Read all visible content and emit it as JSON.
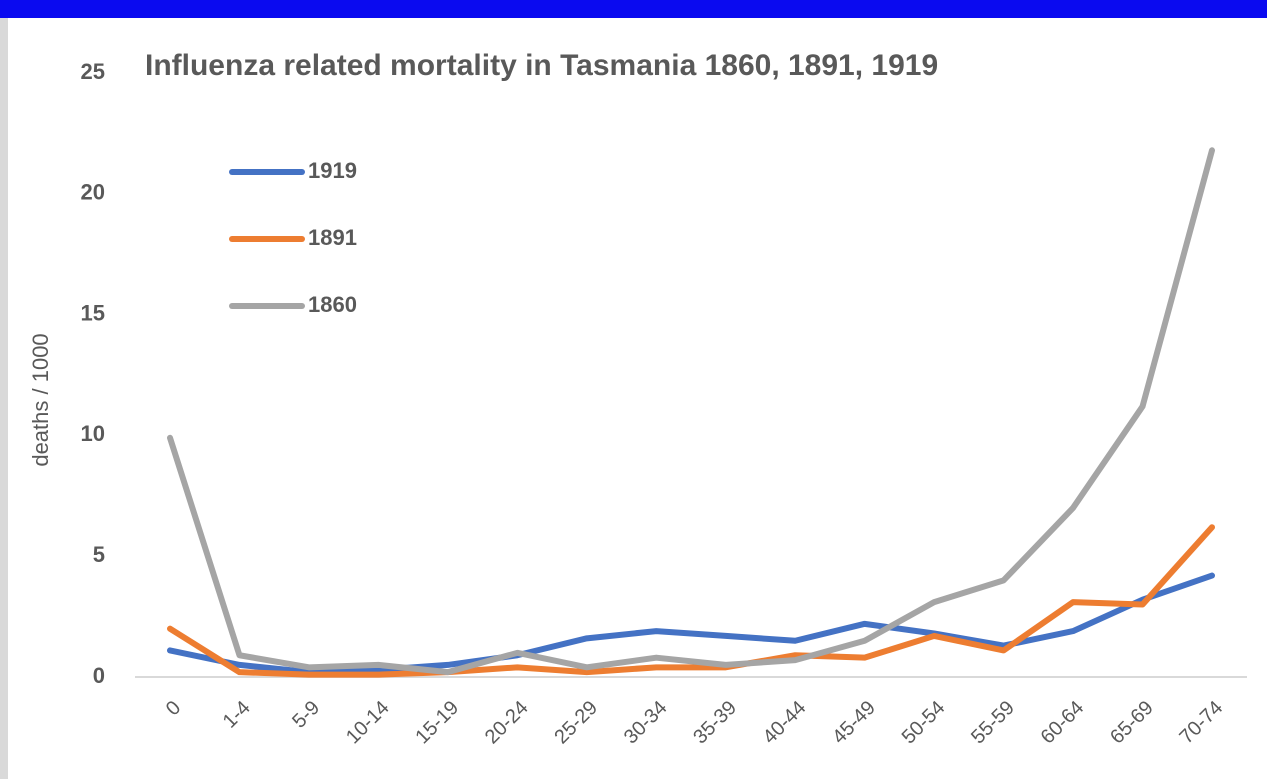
{
  "chart_data": {
    "type": "line",
    "title": "Influenza related mortality in Tasmania 1860, 1891, 1919",
    "y_label": "deaths / 1000",
    "categories": [
      "0",
      "1-4",
      "5-9",
      "10-14",
      "15-19",
      "20-24",
      "25-29",
      "30-34",
      "35-39",
      "40-44",
      "45-49",
      "50-54",
      "55-59",
      "60-64",
      "65-69",
      "70-74"
    ],
    "series": [
      {
        "name": "1919",
        "color": "#4472c4",
        "values": [
          1.1,
          0.5,
          0.2,
          0.3,
          0.5,
          0.9,
          1.6,
          1.9,
          1.7,
          1.5,
          2.2,
          1.8,
          1.3,
          1.9,
          3.2,
          4.2
        ]
      },
      {
        "name": "1891",
        "color": "#ed7d31",
        "values": [
          2.0,
          0.2,
          0.1,
          0.1,
          0.2,
          0.4,
          0.2,
          0.4,
          0.4,
          0.9,
          0.8,
          1.7,
          1.1,
          3.1,
          3.0,
          6.2
        ]
      },
      {
        "name": "1860",
        "color": "#a5a5a5",
        "values": [
          9.9,
          0.9,
          0.4,
          0.5,
          0.2,
          1.0,
          0.4,
          0.8,
          0.5,
          0.7,
          1.5,
          3.1,
          4.0,
          7.0,
          11.2,
          21.8
        ]
      }
    ],
    "ylim": [
      0,
      25
    ],
    "yticks": [
      0,
      5,
      10,
      15,
      20,
      25
    ],
    "grid": false,
    "legend": "upper-left"
  }
}
